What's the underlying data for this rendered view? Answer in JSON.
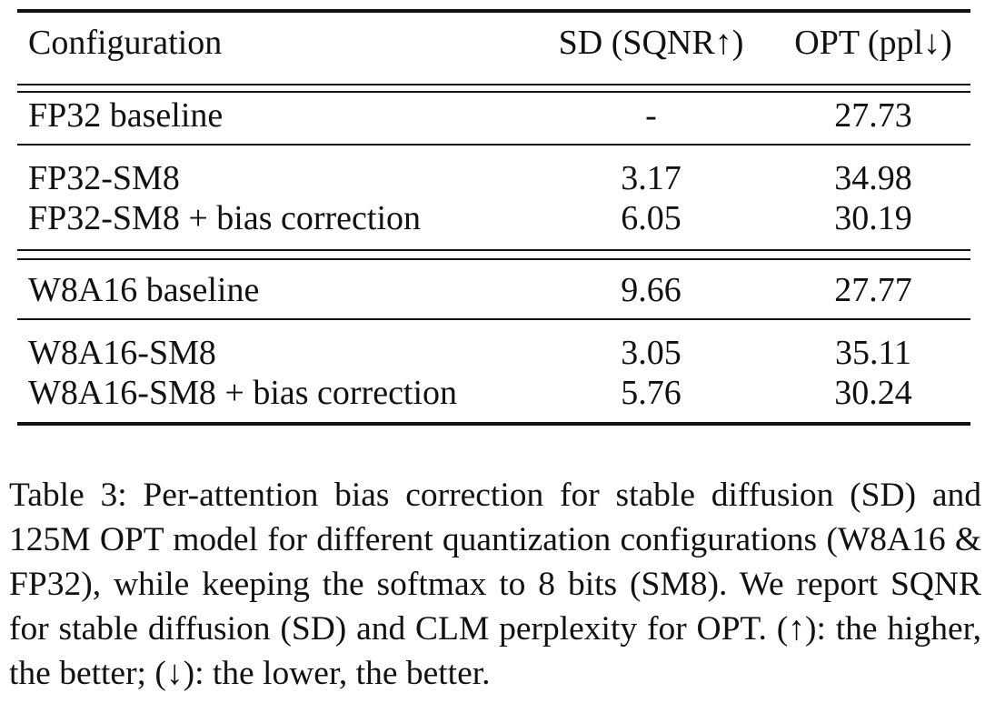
{
  "table": {
    "headers": {
      "configuration": "Configuration",
      "sd": "SD (SQNR↑)",
      "opt": "OPT (ppl↓)"
    },
    "groups": [
      {
        "rows": [
          {
            "config": "FP32 baseline",
            "sd": "-",
            "opt": "27.73"
          }
        ]
      },
      {
        "rows": [
          {
            "config": "FP32-SM8",
            "sd": "3.17",
            "opt": "34.98"
          },
          {
            "config": "FP32-SM8 + bias correction",
            "sd": "6.05",
            "opt": "30.19"
          }
        ]
      },
      {
        "rows": [
          {
            "config": "W8A16 baseline",
            "sd": "9.66",
            "opt": "27.77"
          }
        ]
      },
      {
        "rows": [
          {
            "config": "W8A16-SM8",
            "sd": "3.05",
            "opt": "35.11"
          },
          {
            "config": "W8A16-SM8 + bias correction",
            "sd": "5.76",
            "opt": "30.24"
          }
        ]
      }
    ]
  },
  "caption": {
    "label": "Table 3:",
    "text": " Per-attention bias correction for stable diffusion (SD) and 125M OPT model for different quantization configurations (W8A16 & FP32), while keeping the softmax to 8 bits (SM8). We report SQNR for stable diffusion (SD) and CLM perplexity for OPT. (↑): the higher, the better; (↓): the lower, the better."
  }
}
